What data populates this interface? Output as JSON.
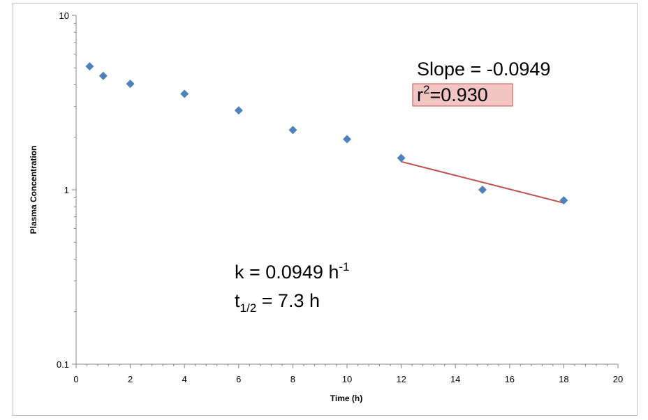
{
  "chart_data": {
    "type": "scatter",
    "title": "",
    "xlabel": "Time (h)",
    "ylabel": "Plasma Concentration",
    "xlim": [
      0,
      20
    ],
    "ylim": [
      0.1,
      10
    ],
    "yscale": "log",
    "x_ticks": [
      "0",
      "2",
      "4",
      "6",
      "8",
      "10",
      "12",
      "14",
      "16",
      "18",
      "20"
    ],
    "y_ticks": [
      "0.1",
      "1",
      "10"
    ],
    "marker_color": "#4f81bd",
    "fit_line_color": "#c0504d",
    "points": [
      {
        "x": 0.5,
        "y": 5.1
      },
      {
        "x": 1,
        "y": 4.5
      },
      {
        "x": 2,
        "y": 4.05
      },
      {
        "x": 4,
        "y": 3.55
      },
      {
        "x": 6,
        "y": 2.85
      },
      {
        "x": 8,
        "y": 2.2
      },
      {
        "x": 10,
        "y": 1.95
      },
      {
        "x": 12,
        "y": 1.52
      },
      {
        "x": 15,
        "y": 1.0
      },
      {
        "x": 18,
        "y": 0.87
      }
    ],
    "trendline": {
      "x_start": 12,
      "y_start": 1.45,
      "x_end": 18,
      "y_end": 0.84
    },
    "annotations": {
      "slope": "Slope = -0.0949",
      "r2_base": "r",
      "r2_sup": "2",
      "r2_value": "=0.930",
      "r2_box_color": "#f2c4c2",
      "k_text": "k = 0.0949 h",
      "k_sup": "-1",
      "thalf_base": "t",
      "thalf_sub": "1/2",
      "thalf_value": " = 7.3 h"
    }
  }
}
